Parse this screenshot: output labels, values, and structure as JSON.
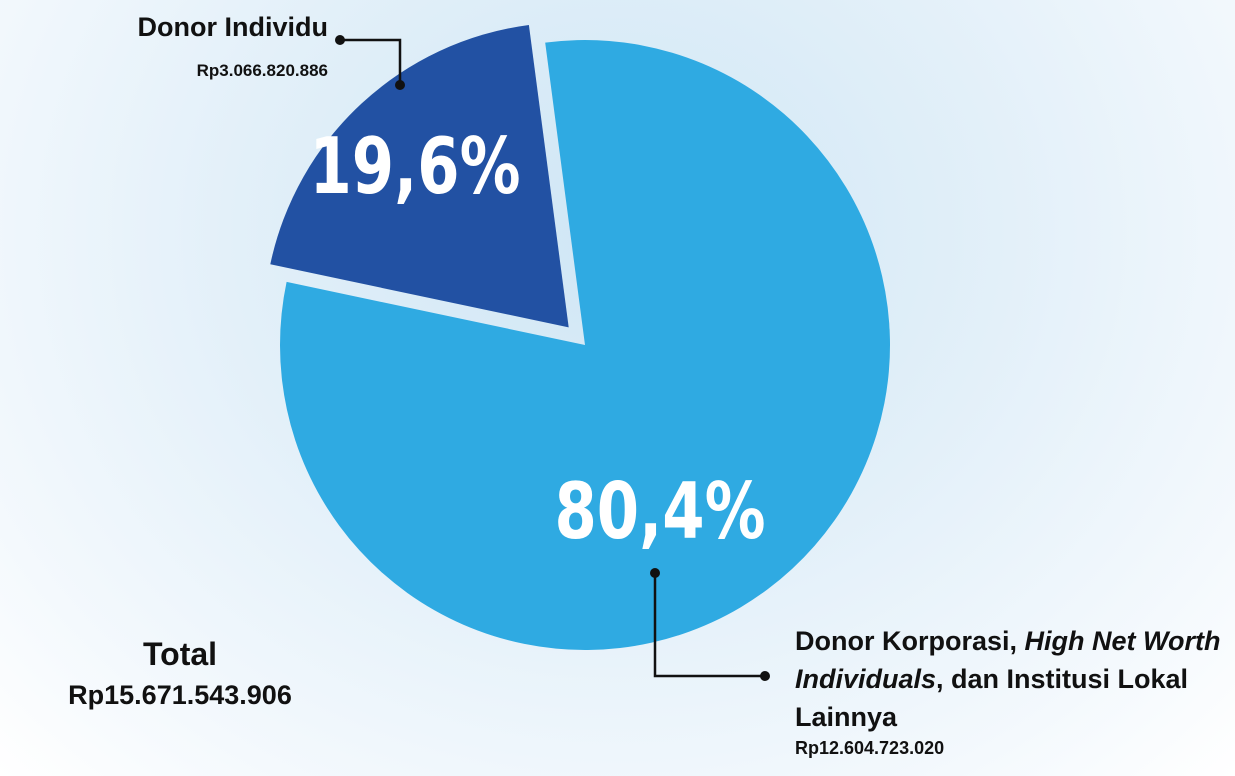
{
  "chart_data": {
    "type": "pie",
    "categories": [
      [
        "Donor Individu"
      ],
      [
        "Donor Korporasi, ",
        "High Net Worth Individuals",
        ", dan Institusi Lokal Lainnya"
      ]
    ],
    "italic": [
      [
        false
      ],
      [
        false,
        true,
        false
      ]
    ],
    "values": [
      19.6,
      80.4
    ],
    "value_labels": [
      "19,6%",
      "80,4%"
    ],
    "amounts": [
      "Rp3.066.820.886",
      "Rp12.604.723.020"
    ],
    "colors": [
      "#2251a3",
      "#2faae2"
    ],
    "exploded": [
      true,
      false
    ],
    "total_label": "Total",
    "total": "Rp15.671.543.906"
  }
}
